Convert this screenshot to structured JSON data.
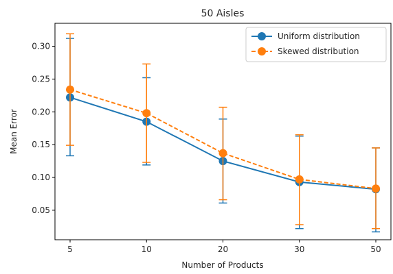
{
  "chart_data": {
    "type": "line",
    "title": "50 Aisles",
    "xlabel": "Number of Products",
    "ylabel": "Mean Error",
    "categories": [
      "5",
      "10",
      "20",
      "30",
      "50"
    ],
    "ylim": [
      0.005,
      0.335
    ],
    "yticks": [
      0.05,
      0.1,
      0.15,
      0.2,
      0.25,
      0.3
    ],
    "ytick_labels": [
      "0.05",
      "0.10",
      "0.15",
      "0.20",
      "0.25",
      "0.30"
    ],
    "grid": false,
    "legend_position": "top-right",
    "series": [
      {
        "name": "Uniform distribution",
        "color": "#1f77b4",
        "line_style": "solid",
        "marker": "circle",
        "values": [
          0.222,
          0.185,
          0.125,
          0.093,
          0.082
        ],
        "err_low": [
          0.133,
          0.119,
          0.061,
          0.022,
          0.017
        ],
        "err_high": [
          0.312,
          0.252,
          0.189,
          0.163,
          0.145
        ]
      },
      {
        "name": "Skewed distribution",
        "color": "#ff7f0e",
        "line_style": "dashed",
        "marker": "circle",
        "values": [
          0.234,
          0.198,
          0.137,
          0.097,
          0.083
        ],
        "err_low": [
          0.149,
          0.123,
          0.066,
          0.028,
          0.022
        ],
        "err_high": [
          0.319,
          0.273,
          0.207,
          0.165,
          0.145
        ]
      }
    ]
  }
}
